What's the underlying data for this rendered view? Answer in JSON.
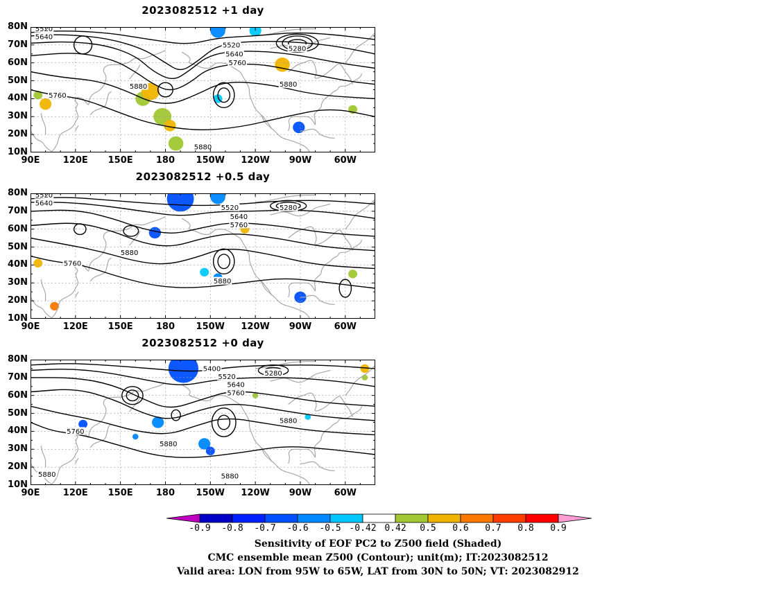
{
  "panels": [
    {
      "title": "2023082512  +1 day",
      "contour_labels": [
        {
          "text": "5520",
          "lon": 99,
          "lat": 79
        },
        {
          "text": "5640",
          "lon": 99,
          "lat": 74.5
        },
        {
          "text": "5520",
          "lon": 224,
          "lat": 70
        },
        {
          "text": "5640",
          "lon": 226,
          "lat": 65
        },
        {
          "text": "5760",
          "lon": 228,
          "lat": 60
        },
        {
          "text": "5280",
          "lon": 268,
          "lat": 68
        },
        {
          "text": "5760",
          "lon": 108,
          "lat": 42
        },
        {
          "text": "5880",
          "lon": 162,
          "lat": 47
        },
        {
          "text": "5880",
          "lon": 262,
          "lat": 48
        },
        {
          "text": "5880",
          "lon": 205,
          "lat": 13
        }
      ]
    },
    {
      "title": "2023082512  +0.5 day",
      "contour_labels": [
        {
          "text": "5520",
          "lon": 99,
          "lat": 79
        },
        {
          "text": "5640",
          "lon": 99,
          "lat": 74.5
        },
        {
          "text": "5520",
          "lon": 223,
          "lat": 72
        },
        {
          "text": "5280",
          "lon": 262,
          "lat": 72
        },
        {
          "text": "5640",
          "lon": 229,
          "lat": 67
        },
        {
          "text": "5760",
          "lon": 229,
          "lat": 62.5
        },
        {
          "text": "5880",
          "lon": 156,
          "lat": 47
        },
        {
          "text": "5760",
          "lon": 118,
          "lat": 41
        },
        {
          "text": "5880",
          "lon": 218,
          "lat": 31
        }
      ]
    },
    {
      "title": "2023082512  +0 day",
      "contour_labels": [
        {
          "text": "5400",
          "lon": 211,
          "lat": 75
        },
        {
          "text": "5280",
          "lon": 252,
          "lat": 72.5
        },
        {
          "text": "5520",
          "lon": 221,
          "lat": 70.5
        },
        {
          "text": "5640",
          "lon": 227,
          "lat": 66
        },
        {
          "text": "5760",
          "lon": 227,
          "lat": 61.5
        },
        {
          "text": "5880",
          "lon": 262,
          "lat": 46
        },
        {
          "text": "5760",
          "lon": 120,
          "lat": 40
        },
        {
          "text": "5880",
          "lon": 182,
          "lat": 33
        },
        {
          "text": "5880",
          "lon": 223,
          "lat": 15
        },
        {
          "text": "5880",
          "lon": 101,
          "lat": 16
        }
      ]
    }
  ],
  "axes": {
    "lat_ticks": [
      "80N",
      "70N",
      "60N",
      "50N",
      "40N",
      "30N",
      "20N",
      "10N"
    ],
    "lon_ticks": [
      "90E",
      "120E",
      "150E",
      "180",
      "150W",
      "120W",
      "90W",
      "60W"
    ],
    "lon_range_deg": [
      90,
      320
    ],
    "lat_range_deg": [
      10,
      80
    ]
  },
  "colorbar": {
    "ticks": [
      "-0.9",
      "-0.8",
      "-0.7",
      "-0.6",
      "-0.5",
      "-0.42",
      "0.42",
      "0.5",
      "0.6",
      "0.7",
      "0.8",
      "0.9"
    ],
    "colors": {
      "below": "#c000c0",
      "bins": [
        "#0000c8",
        "#0020ff",
        "#0050ff",
        "#0088ff",
        "#00c8ff",
        "#ffffff",
        "#a0c832",
        "#f0b400",
        "#fa7800",
        "#ff3c00",
        "#ff0000"
      ],
      "above": "#ff9ed2"
    }
  },
  "shading_blobs": {
    "panel0": [
      {
        "lon": 100,
        "lat": 37,
        "r": 4,
        "c": "#f0b400"
      },
      {
        "lon": 95,
        "lat": 42,
        "r": 3,
        "c": "#a0c832"
      },
      {
        "lon": 165,
        "lat": 40,
        "r": 5,
        "c": "#a0c832"
      },
      {
        "lon": 170,
        "lat": 44,
        "r": 6,
        "c": "#f0b400"
      },
      {
        "lon": 178,
        "lat": 30,
        "r": 6,
        "c": "#a0c832"
      },
      {
        "lon": 183,
        "lat": 25,
        "r": 4,
        "c": "#f0b400"
      },
      {
        "lon": 187,
        "lat": 15,
        "r": 5,
        "c": "#a0c832"
      },
      {
        "lon": 258,
        "lat": 59,
        "r": 5,
        "c": "#f0b400"
      },
      {
        "lon": 215,
        "lat": 40,
        "r": 3,
        "c": "#00c8ff"
      },
      {
        "lon": 269,
        "lat": 24,
        "r": 4,
        "c": "#0050ff"
      },
      {
        "lon": 215,
        "lat": 78,
        "r": 5,
        "c": "#0088ff"
      },
      {
        "lon": 240,
        "lat": 78,
        "r": 4,
        "c": "#00c8ff"
      },
      {
        "lon": 305,
        "lat": 34,
        "r": 3,
        "c": "#a0c832"
      }
    ],
    "panel1": [
      {
        "lon": 190,
        "lat": 77,
        "r": 9,
        "c": "#0050ff"
      },
      {
        "lon": 215,
        "lat": 78,
        "r": 5,
        "c": "#0088ff"
      },
      {
        "lon": 173,
        "lat": 58,
        "r": 4,
        "c": "#0050ff"
      },
      {
        "lon": 233,
        "lat": 60,
        "r": 3,
        "c": "#f0b400"
      },
      {
        "lon": 95,
        "lat": 41,
        "r": 3,
        "c": "#f0b400"
      },
      {
        "lon": 106,
        "lat": 17,
        "r": 3,
        "c": "#fa7800"
      },
      {
        "lon": 206,
        "lat": 36,
        "r": 3,
        "c": "#00c8ff"
      },
      {
        "lon": 215,
        "lat": 33,
        "r": 3,
        "c": "#0088ff"
      },
      {
        "lon": 270,
        "lat": 22,
        "r": 4,
        "c": "#0050ff"
      },
      {
        "lon": 305,
        "lat": 35,
        "r": 3,
        "c": "#a0c832"
      }
    ],
    "panel2": [
      {
        "lon": 192,
        "lat": 75,
        "r": 10,
        "c": "#0050ff"
      },
      {
        "lon": 175,
        "lat": 45,
        "r": 4,
        "c": "#0088ff"
      },
      {
        "lon": 125,
        "lat": 44,
        "r": 3,
        "c": "#0050ff"
      },
      {
        "lon": 206,
        "lat": 33,
        "r": 4,
        "c": "#0088ff"
      },
      {
        "lon": 210,
        "lat": 29,
        "r": 3,
        "c": "#0050ff"
      },
      {
        "lon": 313,
        "lat": 75,
        "r": 3,
        "c": "#f0b400"
      },
      {
        "lon": 313,
        "lat": 70,
        "r": 2,
        "c": "#a0c832"
      },
      {
        "lon": 240,
        "lat": 60,
        "r": 2,
        "c": "#a0c832"
      },
      {
        "lon": 160,
        "lat": 37,
        "r": 2,
        "c": "#0088ff"
      },
      {
        "lon": 275,
        "lat": 48,
        "r": 2,
        "c": "#00c8ff"
      }
    ]
  },
  "caption": {
    "line1": "Sensitivity of EOF PC2 to Z500 field (Shaded)",
    "line2": "CMC ensemble mean Z500 (Contour); unit(m); IT:2023082512",
    "line3": "Valid area: LON from 95W to 65W, LAT from 30N to 50N; VT: 2023082912"
  }
}
